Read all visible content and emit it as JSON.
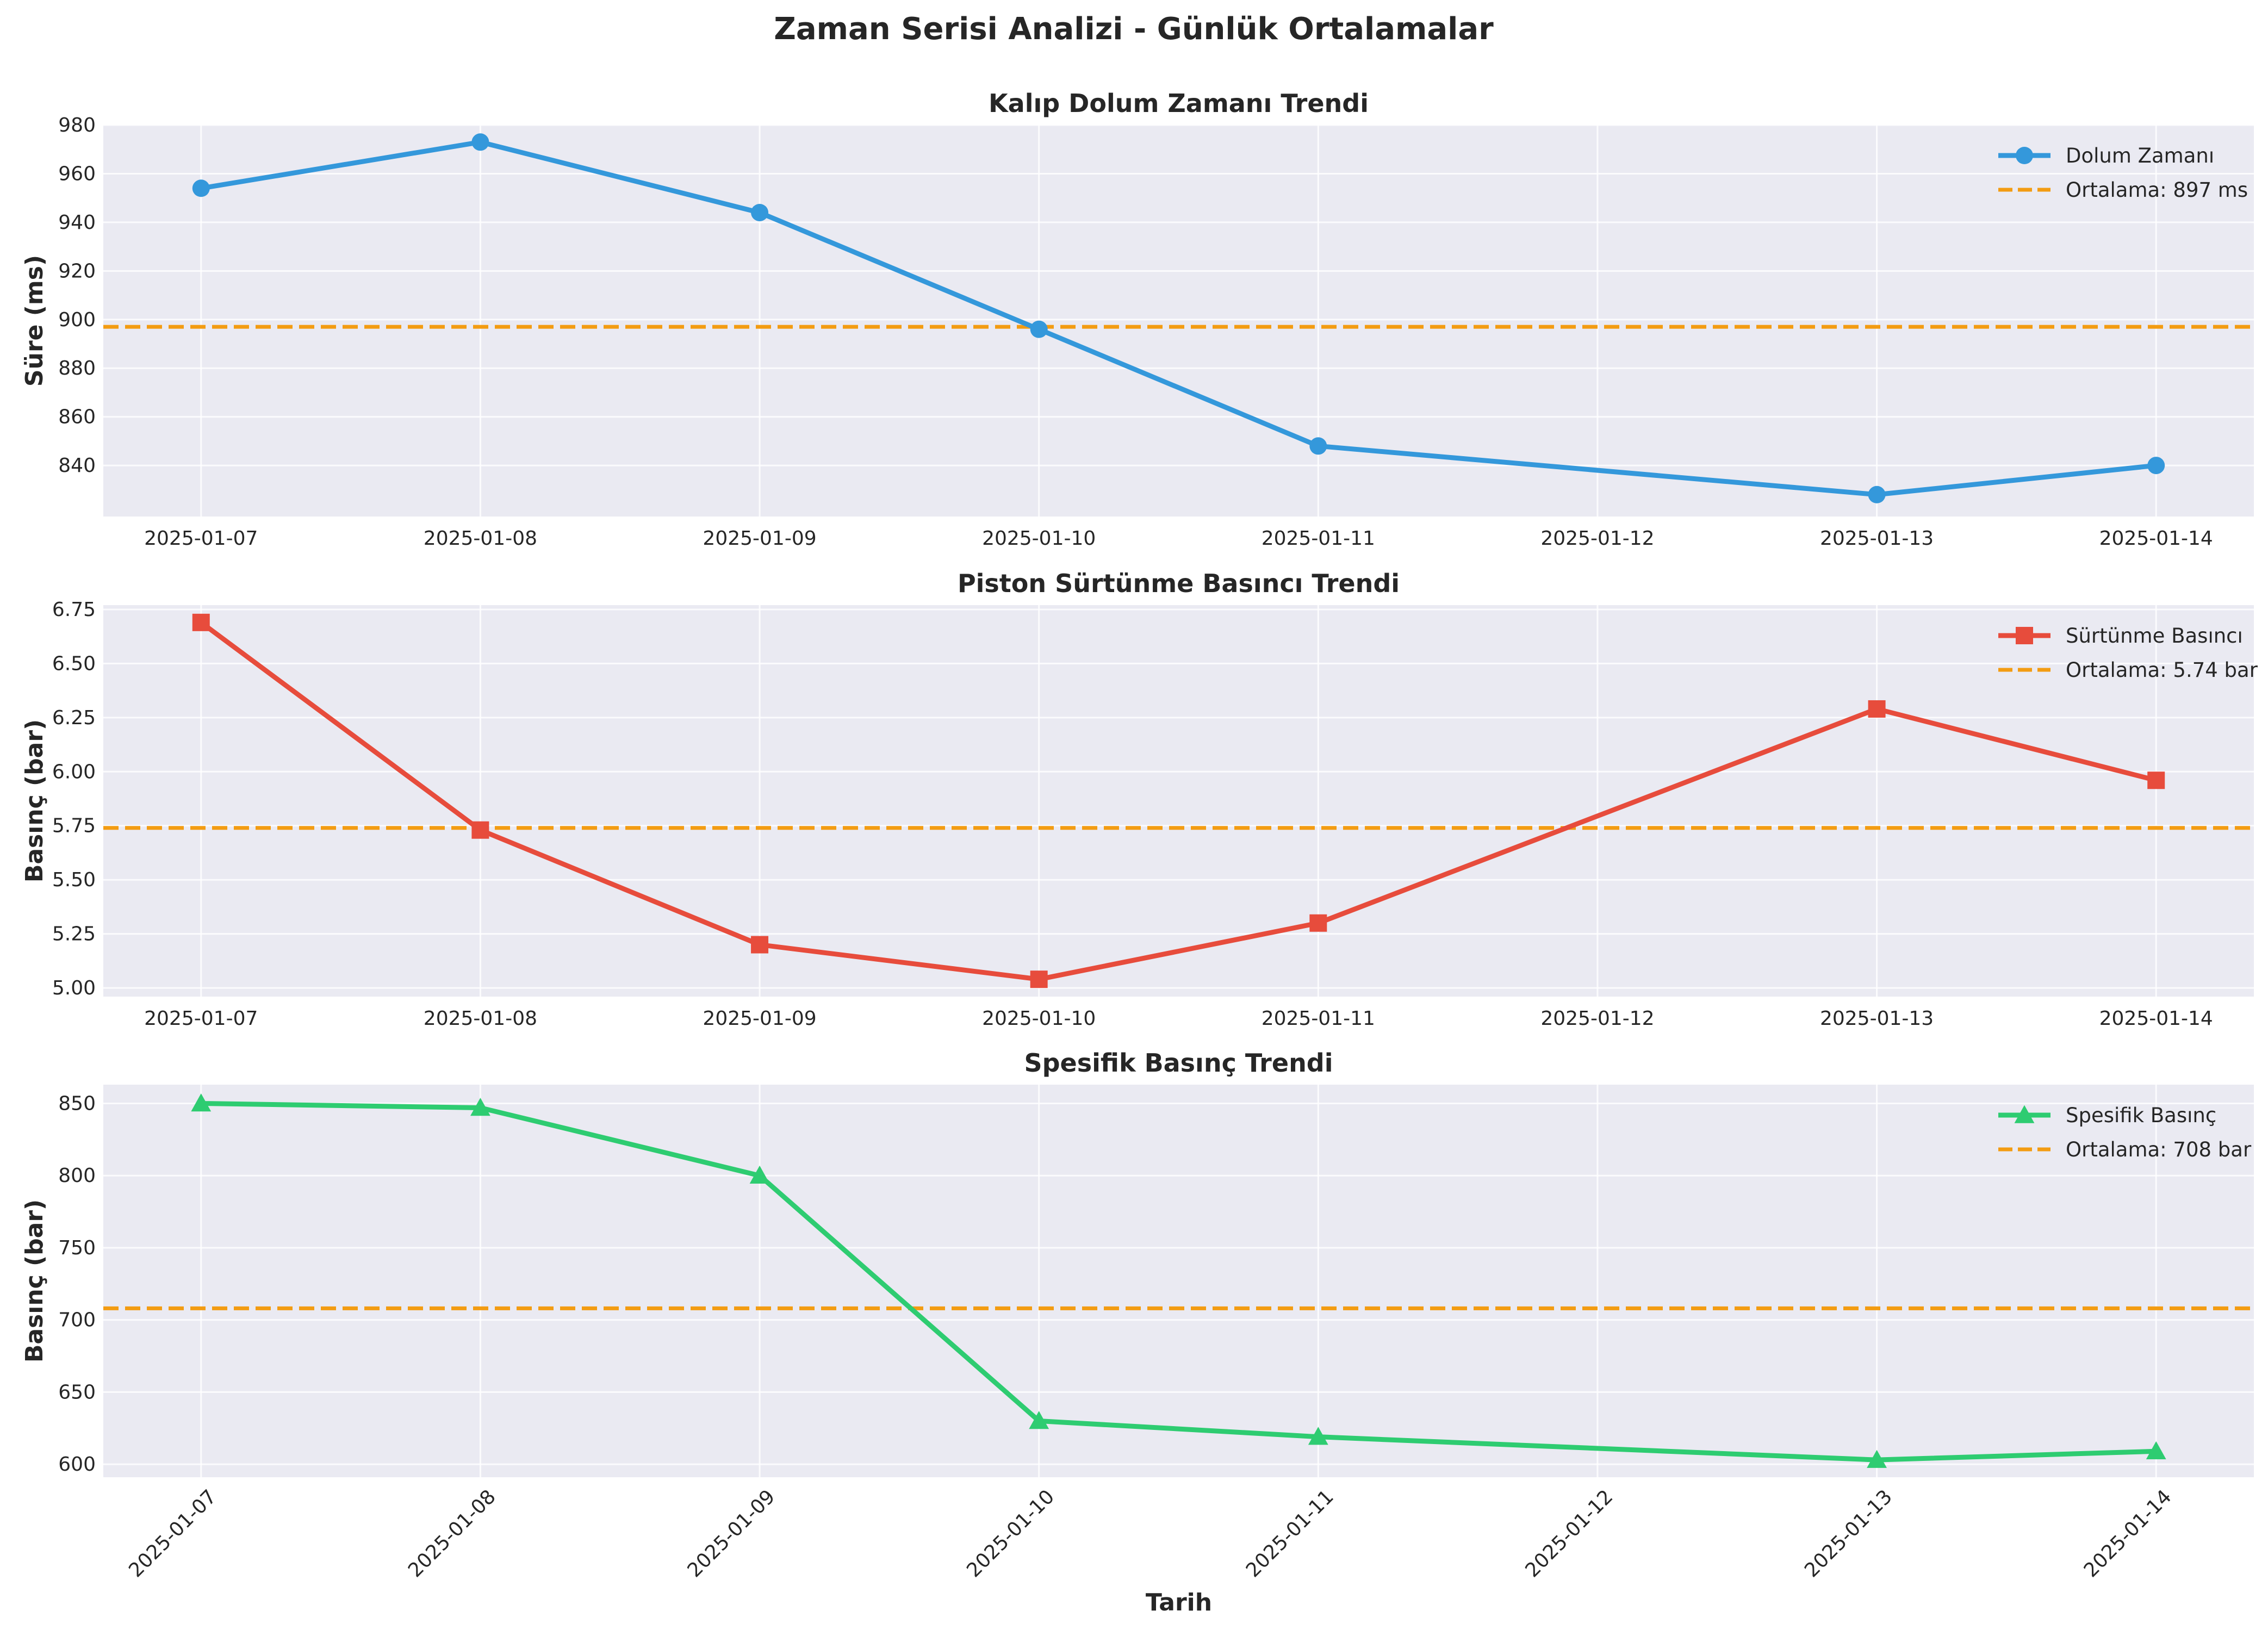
{
  "figure": {
    "suptitle": "Zaman Serisi Analizi - Günlük Ortalamalar",
    "xlabel": "Tarih"
  },
  "chart_data": [
    {
      "type": "line",
      "title": "Kalıp Dolum Zamanı Trendi",
      "xlabel": "",
      "ylabel": "Süre (ms)",
      "x": [
        "2025-01-07",
        "2025-01-08",
        "2025-01-09",
        "2025-01-10",
        "2025-01-11",
        "2025-01-13",
        "2025-01-14"
      ],
      "xticks": [
        "2025-01-07",
        "2025-01-08",
        "2025-01-09",
        "2025-01-10",
        "2025-01-11",
        "2025-01-12",
        "2025-01-13",
        "2025-01-14"
      ],
      "xlim": [
        "2025-01-06.65",
        "2025-01-14.35"
      ],
      "ylim": [
        819,
        980
      ],
      "yticks": [
        840,
        860,
        880,
        900,
        920,
        940,
        960,
        980
      ],
      "ytick_labels": [
        "840",
        "860",
        "880",
        "900",
        "920",
        "940",
        "960",
        "980"
      ],
      "series": [
        {
          "name": "Dolum Zamanı",
          "values": [
            954,
            973,
            944,
            896,
            848,
            828,
            840
          ],
          "color": "#3498db",
          "marker": "circle"
        }
      ],
      "mean_line": {
        "label": "Ortalama: 897 ms",
        "value": 897,
        "color": "#f39c12"
      },
      "legend": "top-right",
      "grid": true
    },
    {
      "type": "line",
      "title": "Piston Sürtünme Basıncı Trendi",
      "xlabel": "",
      "ylabel": "Basınç (bar)",
      "x": [
        "2025-01-07",
        "2025-01-08",
        "2025-01-09",
        "2025-01-10",
        "2025-01-11",
        "2025-01-13",
        "2025-01-14"
      ],
      "xticks": [
        "2025-01-07",
        "2025-01-08",
        "2025-01-09",
        "2025-01-10",
        "2025-01-11",
        "2025-01-12",
        "2025-01-13",
        "2025-01-14"
      ],
      "xlim": [
        "2025-01-06.65",
        "2025-01-14.35"
      ],
      "ylim": [
        4.96,
        6.77
      ],
      "yticks": [
        5.0,
        5.25,
        5.5,
        5.75,
        6.0,
        6.25,
        6.5,
        6.75
      ],
      "ytick_labels": [
        "5.00",
        "5.25",
        "5.50",
        "5.75",
        "6.00",
        "6.25",
        "6.50",
        "6.75"
      ],
      "series": [
        {
          "name": "Sürtünme Basıncı",
          "values": [
            6.69,
            5.73,
            5.2,
            5.04,
            5.3,
            6.29,
            5.96
          ],
          "color": "#e74c3c",
          "marker": "square"
        }
      ],
      "mean_line": {
        "label": "Ortalama: 5.74 bar",
        "value": 5.74,
        "color": "#f39c12"
      },
      "legend": "top-right",
      "grid": true
    },
    {
      "type": "line",
      "title": "Spesifik Basınç Trendi",
      "xlabel": "Tarih",
      "ylabel": "Basınç (bar)",
      "x": [
        "2025-01-07",
        "2025-01-08",
        "2025-01-09",
        "2025-01-10",
        "2025-01-11",
        "2025-01-13",
        "2025-01-14"
      ],
      "xticks": [
        "2025-01-07",
        "2025-01-08",
        "2025-01-09",
        "2025-01-10",
        "2025-01-11",
        "2025-01-12",
        "2025-01-13",
        "2025-01-14"
      ],
      "xlim": [
        "2025-01-06.65",
        "2025-01-14.35"
      ],
      "ylim": [
        591,
        863
      ],
      "yticks": [
        600,
        650,
        700,
        750,
        800,
        850
      ],
      "ytick_labels": [
        "600",
        "650",
        "700",
        "750",
        "800",
        "850"
      ],
      "series": [
        {
          "name": "Spesifik Basınç",
          "values": [
            850,
            847,
            800,
            630,
            619,
            603,
            609
          ],
          "color": "#2ecc71",
          "marker": "triangle"
        }
      ],
      "mean_line": {
        "label": "Ortalama: 708 bar",
        "value": 708,
        "color": "#f39c12"
      },
      "legend": "top-right",
      "grid": true,
      "xtick_rotation": 45
    }
  ]
}
